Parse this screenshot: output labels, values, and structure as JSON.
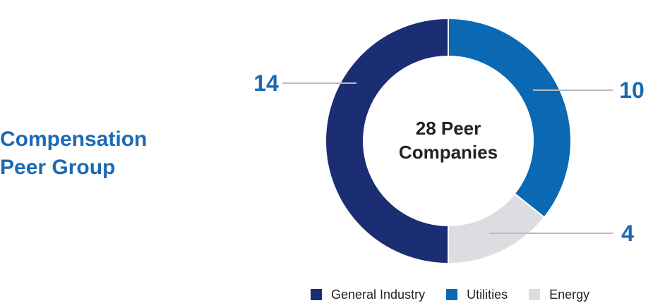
{
  "heading": {
    "line1": "Compensation",
    "line2": "Peer Group"
  },
  "chart_data": {
    "type": "pie",
    "donut": true,
    "title": "",
    "center_label": [
      "28 Peer",
      "Companies"
    ],
    "series": [
      {
        "name": "General Industry",
        "value": 14,
        "color": "#1b2d73"
      },
      {
        "name": "Utilities",
        "value": 10,
        "color": "#0b69b3"
      },
      {
        "name": "Energy",
        "value": 4,
        "color": "#dcdde1"
      }
    ],
    "data_labels": [
      "14",
      "10",
      "4"
    ],
    "legend_position": "bottom"
  }
}
